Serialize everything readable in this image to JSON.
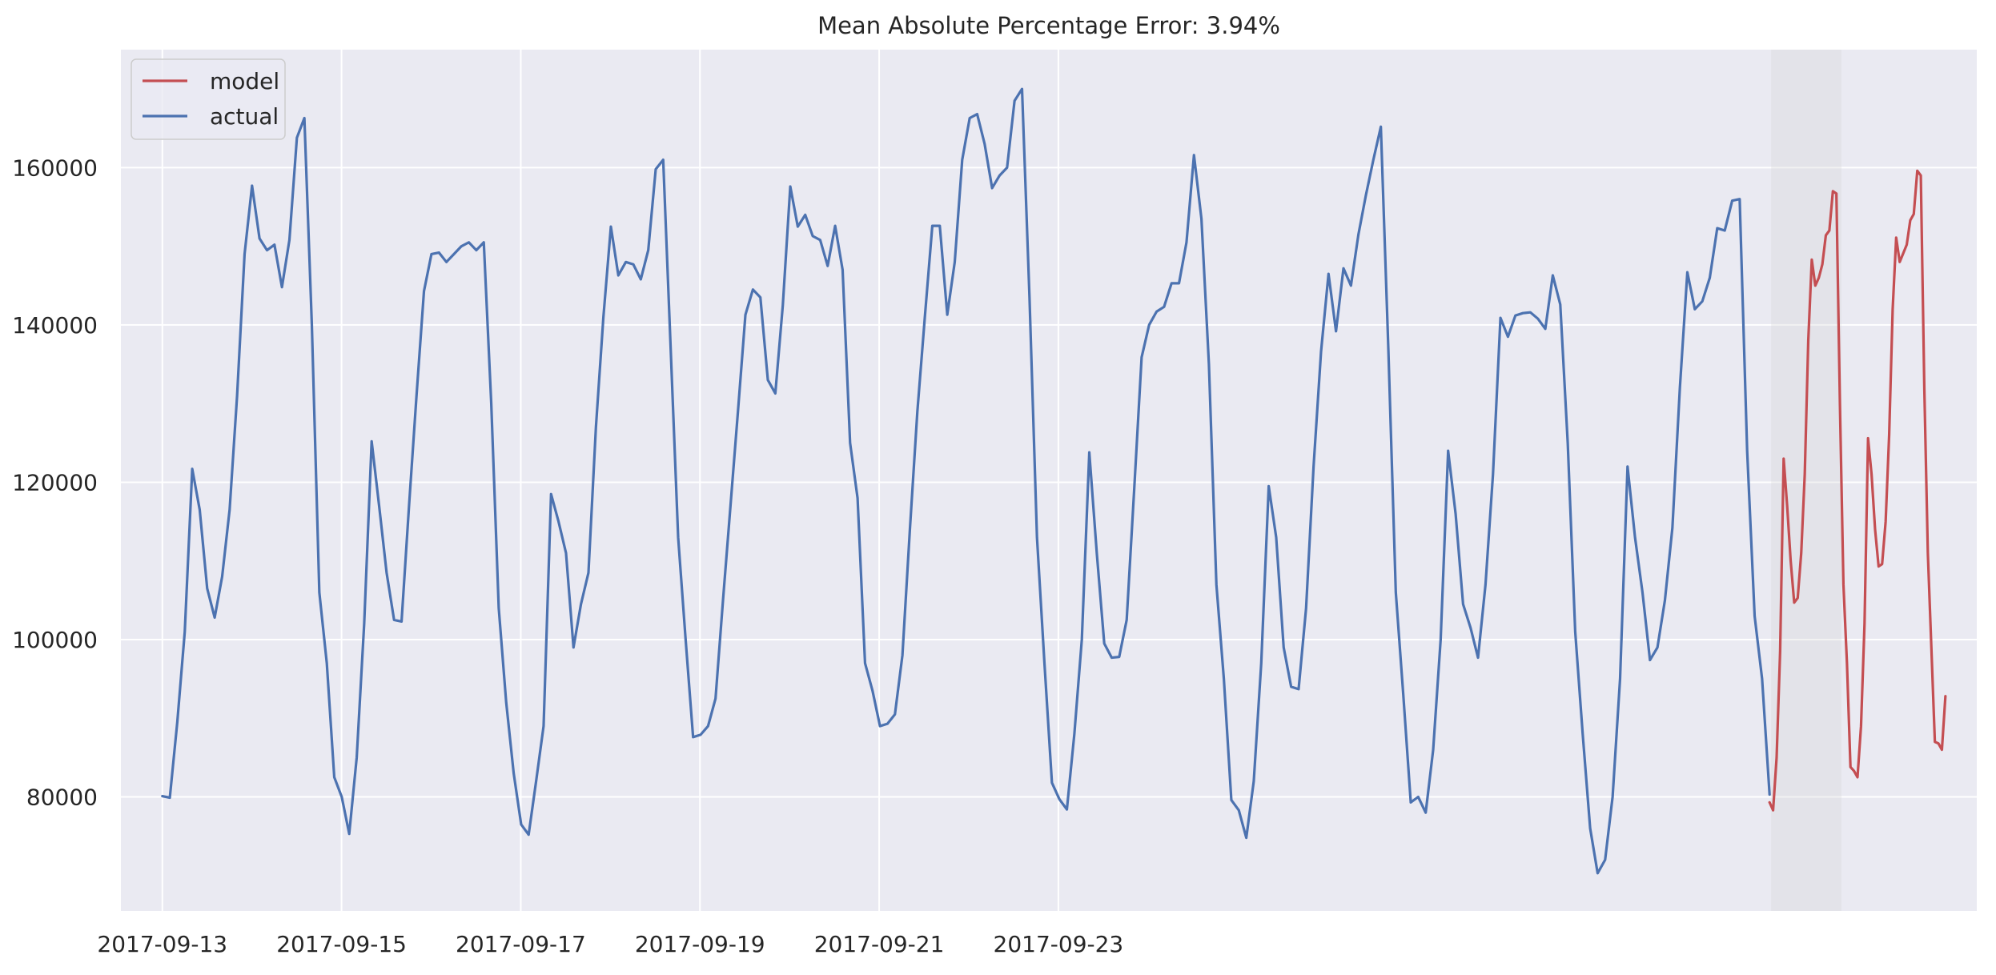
{
  "chart_data": {
    "type": "line",
    "title": "Mean Absolute Percentage Error: 3.94%",
    "xlabel": "",
    "ylabel": "",
    "xlim": [
      -1.85,
      81.0
    ],
    "ylim": [
      65500,
      175000
    ],
    "x_tick_labels": [
      "2017-09-13",
      "2017-09-15",
      "2017-09-17",
      "2017-09-19",
      "2017-09-21",
      "2017-09-23"
    ],
    "y_ticks": [
      80000,
      100000,
      120000,
      140000,
      160000
    ],
    "y_tick_labels": [
      "80000",
      "100000",
      "120000",
      "140000",
      "160000"
    ],
    "grid": true,
    "legend_position": "top-left",
    "shaded_region": [
      71.82,
      74.96
    ],
    "colors": {
      "plot_background": "#eaeaf2",
      "grid": "#ffffff",
      "shade": "#d3d3d3",
      "actual": "#4c72b0",
      "model": "#c44e52",
      "text": "#262626"
    },
    "series": [
      {
        "name": "actual",
        "x_start": 0,
        "values": [
          80100,
          79900,
          89500,
          101000,
          121700,
          116500,
          106500,
          102800,
          108000,
          116500,
          131000,
          149000,
          157700,
          151000,
          149500,
          150200,
          144800,
          150800,
          163800,
          166300,
          140000,
          106000,
          97000,
          82500,
          80000,
          75300,
          85000,
          102000,
          125200,
          117000,
          108500,
          102500,
          102300,
          117000,
          131000,
          144300,
          149000,
          149200,
          148000,
          149000,
          150000,
          150500,
          149500,
          150500,
          130000,
          104000,
          92000,
          83000,
          76500,
          75200,
          82000,
          89000,
          118500,
          115000,
          111000,
          99000,
          104500,
          108500,
          127000,
          141000,
          152500,
          146300,
          148000,
          147700,
          145800,
          149500,
          159800,
          161000,
          137000,
          113000,
          100000,
          87600,
          87900,
          89000,
          92500,
          105000,
          117000,
          129000,
          141300,
          144500,
          143500,
          133000,
          131300,
          142500,
          157600,
          152500,
          154000,
          151300,
          150800,
          147500,
          152600,
          147000,
          125000,
          118000,
          97000,
          93500,
          89000,
          89300,
          90500,
          98000,
          114000,
          129000,
          141000,
          152600,
          152600,
          141300,
          148000,
          161000,
          166300,
          166800,
          163000,
          157400,
          159000,
          160000,
          168500,
          170000,
          143500,
          113000,
          97000,
          81800,
          79700,
          78400,
          88000,
          100000,
          123800,
          111000,
          99500,
          97700,
          97800,
          102500,
          119000,
          135900,
          140000,
          141700,
          142300,
          145300,
          145300,
          150500,
          161600,
          153500,
          135000,
          107000,
          95000,
          79600,
          78300,
          74800,
          82000,
          97000,
          119500,
          113000,
          99000,
          94000,
          93700,
          104000,
          122000,
          136600,
          146500,
          139200,
          147200,
          145000,
          151500,
          156500,
          161000,
          165200,
          137000,
          106000,
          93000,
          79300,
          80000,
          78000,
          86000,
          100000,
          124000,
          116000,
          104500,
          101500,
          97700,
          107000,
          121000,
          140900,
          138500,
          141200,
          141500,
          141600,
          140800,
          139500,
          146300,
          142600,
          125000,
          101000,
          88000,
          76000,
          70300,
          72000,
          80000,
          95000,
          122000,
          113000,
          106000,
          97400,
          99000,
          105000,
          114200,
          132000,
          146700,
          142000,
          143000,
          146000,
          152300,
          152000,
          155800,
          156000,
          124000,
          103000,
          95000,
          80300
        ]
      },
      {
        "name": "model",
        "x_start": 71.75,
        "values": [
          79300,
          78300,
          85000,
          98500,
          123000,
          117000,
          110000,
          104700,
          105300,
          111000,
          121000,
          138000,
          148300,
          145000,
          146000,
          147700,
          151400,
          152000,
          157000,
          156700,
          130000,
          107000,
          97000,
          83800,
          83300,
          82500,
          89000,
          102000,
          125600,
          121000,
          114000,
          109300,
          109600,
          115000,
          126000,
          142000,
          151100,
          148000,
          149100,
          150200,
          153300,
          154100,
          159600,
          159000,
          132000,
          111000,
          99000,
          87000,
          86800,
          86000,
          92800
        ]
      }
    ]
  }
}
